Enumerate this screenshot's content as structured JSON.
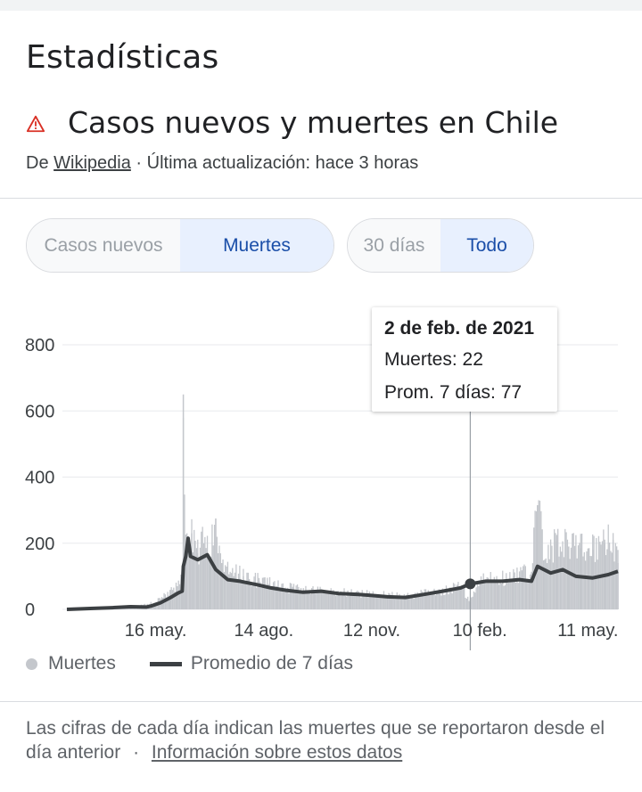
{
  "header": {
    "title": "Estadísticas"
  },
  "card": {
    "title": "Casos nuevos y muertes en Chile",
    "source_prefix": "De",
    "source_link": "Wikipedia",
    "updated": "· Última actualización: hace 3 horas"
  },
  "toggles": {
    "metric": {
      "cases": "Casos nuevos",
      "deaths": "Muertes",
      "selected": "Muertes"
    },
    "range": {
      "days30": "30 días",
      "all": "Todo",
      "selected": "Todo"
    }
  },
  "tooltip": {
    "date": "2 de feb. de 2021",
    "deaths_line": "Muertes: 22",
    "avg_line": "Prom. 7 días: 77"
  },
  "legend": {
    "series1": "Muertes",
    "series2": "Promedio de 7 días"
  },
  "footer": {
    "text": "Las cifras de cada día indican las muertes que se reportaron desde el día anterior",
    "separator": "·",
    "link": "Información sobre estos datos"
  },
  "colors": {
    "bars": "#c4c7cc",
    "avg_line": "#3c4043",
    "active_text": "#1a4ea8",
    "active_bg": "#e8f0fe",
    "warning": "#d93025"
  },
  "chart_data": {
    "type": "bar",
    "y_ticks": [
      "0",
      "200",
      "400",
      "600",
      "800"
    ],
    "ylim": [
      0,
      800
    ],
    "x_tick_labels": [
      "16 may.",
      "14 ago.",
      "12 nov.",
      "10 feb.",
      "11 may."
    ],
    "x_tick_dates": [
      "2020-05-16",
      "2020-08-14",
      "2020-11-12",
      "2021-02-10",
      "2021-05-11"
    ],
    "x_range": [
      "2020-03-03",
      "2021-06-05"
    ],
    "grid": true,
    "legend": "bottom",
    "hover_date": "2021-02-02",
    "daily_points": [
      [
        "2020-03-03",
        0
      ],
      [
        "2020-03-25",
        2
      ],
      [
        "2020-04-05",
        5
      ],
      [
        "2020-04-20",
        10
      ],
      [
        "2020-05-05",
        12
      ],
      [
        "2020-05-15",
        20
      ],
      [
        "2020-05-22",
        35
      ],
      [
        "2020-05-28",
        55
      ],
      [
        "2020-06-03",
        70
      ],
      [
        "2020-06-07",
        110
      ],
      [
        "2020-06-08",
        650
      ],
      [
        "2020-06-10",
        200
      ],
      [
        "2020-06-15",
        230
      ],
      [
        "2020-06-20",
        170
      ],
      [
        "2020-06-25",
        200
      ],
      [
        "2020-06-30",
        160
      ],
      [
        "2020-07-05",
        275
      ],
      [
        "2020-07-10",
        140
      ],
      [
        "2020-07-18",
        110
      ],
      [
        "2020-07-28",
        100
      ],
      [
        "2020-08-10",
        85
      ],
      [
        "2020-08-25",
        70
      ],
      [
        "2020-09-10",
        60
      ],
      [
        "2020-09-25",
        55
      ],
      [
        "2020-10-10",
        52
      ],
      [
        "2020-10-25",
        48
      ],
      [
        "2020-11-12",
        45
      ],
      [
        "2020-11-28",
        42
      ],
      [
        "2020-12-12",
        40
      ],
      [
        "2020-12-28",
        48
      ],
      [
        "2021-01-10",
        55
      ],
      [
        "2021-01-25",
        70
      ],
      [
        "2021-02-02",
        22
      ],
      [
        "2021-02-10",
        85
      ],
      [
        "2021-02-25",
        90
      ],
      [
        "2021-03-10",
        100
      ],
      [
        "2021-03-25",
        110
      ],
      [
        "2021-03-30",
        315
      ],
      [
        "2021-04-05",
        150
      ],
      [
        "2021-04-15",
        205
      ],
      [
        "2021-04-25",
        190
      ],
      [
        "2021-05-05",
        185
      ],
      [
        "2021-05-15",
        180
      ],
      [
        "2021-05-25",
        200
      ],
      [
        "2021-06-01",
        210
      ],
      [
        "2021-06-05",
        140
      ]
    ],
    "series": [
      {
        "name": "Promedio de 7 días",
        "points": [
          [
            "2020-03-03",
            0
          ],
          [
            "2020-03-25",
            3
          ],
          [
            "2020-04-10",
            5
          ],
          [
            "2020-04-25",
            8
          ],
          [
            "2020-05-08",
            7
          ],
          [
            "2020-05-12",
            10
          ],
          [
            "2020-05-20",
            20
          ],
          [
            "2020-05-28",
            35
          ],
          [
            "2020-06-04",
            50
          ],
          [
            "2020-06-07",
            55
          ],
          [
            "2020-06-08",
            130
          ],
          [
            "2020-06-10",
            160
          ],
          [
            "2020-06-12",
            215
          ],
          [
            "2020-06-14",
            160
          ],
          [
            "2020-06-20",
            150
          ],
          [
            "2020-06-28",
            165
          ],
          [
            "2020-07-05",
            120
          ],
          [
            "2020-07-15",
            90
          ],
          [
            "2020-07-25",
            85
          ],
          [
            "2020-08-08",
            75
          ],
          [
            "2020-08-20",
            65
          ],
          [
            "2020-09-01",
            58
          ],
          [
            "2020-09-15",
            52
          ],
          [
            "2020-10-01",
            55
          ],
          [
            "2020-10-15",
            48
          ],
          [
            "2020-11-01",
            45
          ],
          [
            "2020-11-12",
            42
          ],
          [
            "2020-11-25",
            38
          ],
          [
            "2020-12-10",
            36
          ],
          [
            "2020-12-25",
            45
          ],
          [
            "2021-01-10",
            55
          ],
          [
            "2021-01-25",
            65
          ],
          [
            "2021-02-02",
            77
          ],
          [
            "2021-02-15",
            85
          ],
          [
            "2021-03-01",
            85
          ],
          [
            "2021-03-15",
            90
          ],
          [
            "2021-03-25",
            85
          ],
          [
            "2021-03-30",
            130
          ],
          [
            "2021-04-10",
            110
          ],
          [
            "2021-04-20",
            120
          ],
          [
            "2021-05-01",
            100
          ],
          [
            "2021-05-15",
            95
          ],
          [
            "2021-05-28",
            105
          ],
          [
            "2021-06-05",
            115
          ]
        ]
      }
    ]
  }
}
